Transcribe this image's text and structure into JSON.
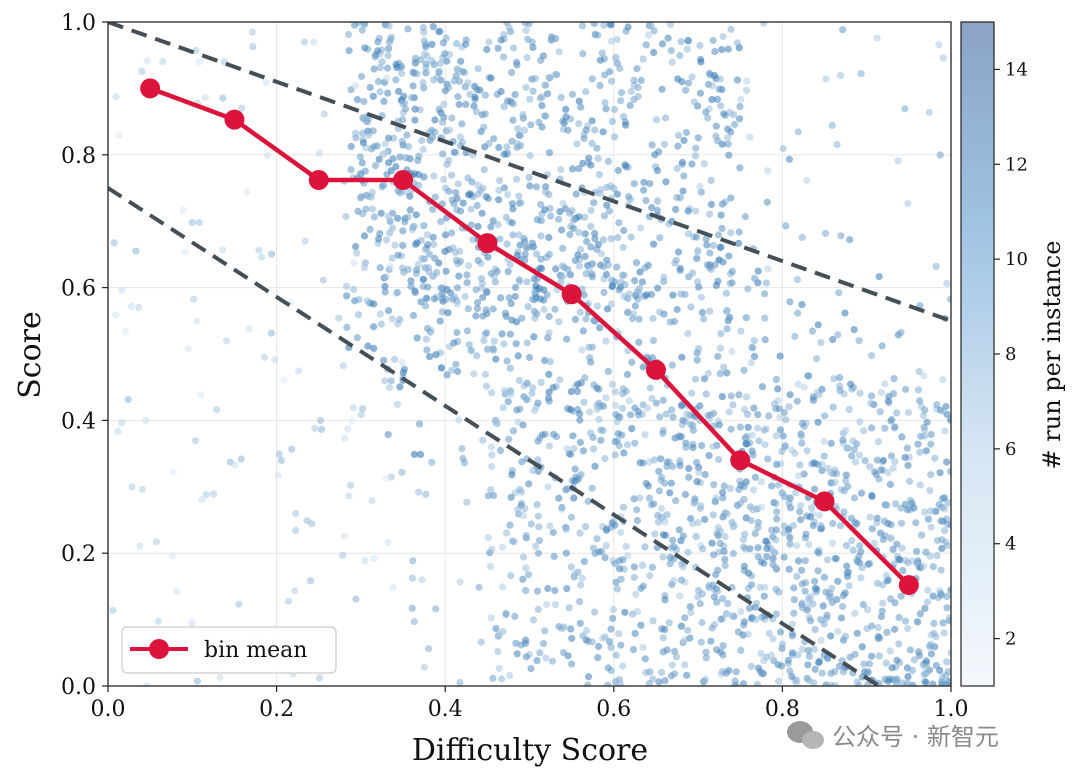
{
  "chart_data": {
    "type": "scatter",
    "xlabel": "Difficulty Score",
    "ylabel": "Score",
    "xlim": [
      0.0,
      1.0
    ],
    "ylim": [
      0.0,
      1.0
    ],
    "xticks": [
      "0.0",
      "0.2",
      "0.4",
      "0.6",
      "0.8",
      "1.0"
    ],
    "yticks": [
      "0.0",
      "0.2",
      "0.4",
      "0.6",
      "0.8",
      "1.0"
    ],
    "grid": true,
    "legend": {
      "placement": "bottom-left",
      "label": "bin mean"
    },
    "colorbar": {
      "label": "# run per instance",
      "range": [
        1,
        15
      ],
      "ticks": [
        "2",
        "4",
        "6",
        "8",
        "10",
        "12",
        "14"
      ],
      "color_low": "#f4f8fc",
      "color_high": "#8ba3c4"
    },
    "bin_mean_series": {
      "name": "bin mean",
      "color": "#dc143c",
      "x": [
        0.05,
        0.15,
        0.25,
        0.35,
        0.45,
        0.55,
        0.65,
        0.75,
        0.85,
        0.95
      ],
      "y": [
        0.9,
        0.853,
        0.762,
        0.762,
        0.667,
        0.59,
        0.476,
        0.34,
        0.278,
        0.152
      ]
    },
    "reference_lines": [
      {
        "style": "dashed",
        "color": "#444f57",
        "x": [
          0.0,
          1.0
        ],
        "y": [
          1.0,
          0.55
        ]
      },
      {
        "style": "dashed",
        "color": "#444f57",
        "x": [
          0.0,
          1.0
        ],
        "y": [
          0.75,
          -0.07
        ]
      }
    ],
    "scatter_note_color": "#4a86b8"
  },
  "watermark": {
    "text": "公众号 · 新智元"
  }
}
